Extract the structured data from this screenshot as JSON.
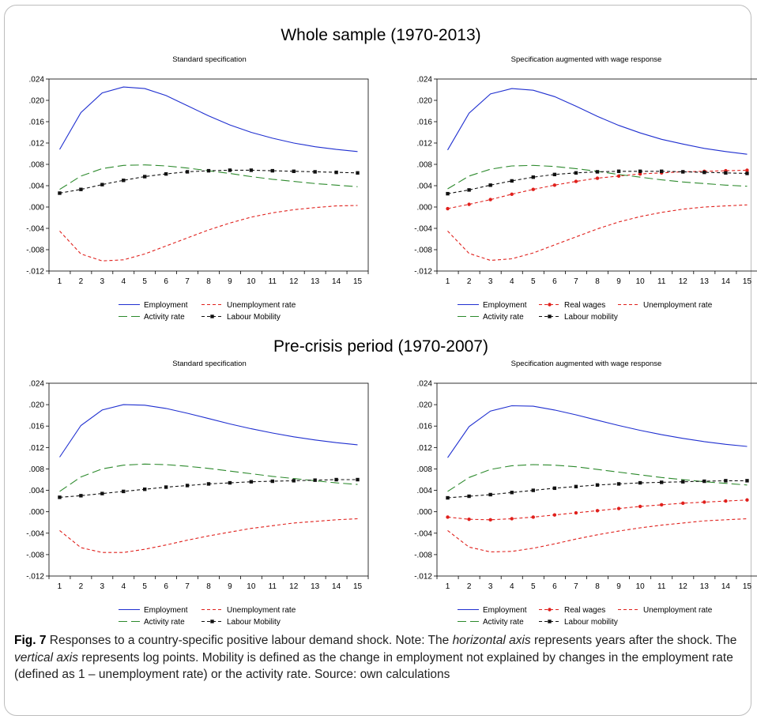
{
  "sections": [
    {
      "title": "Whole sample (1970-2013)"
    },
    {
      "title": "Pre-crisis period (1970-2007)"
    }
  ],
  "colors": {
    "employment": "#1f2fd0",
    "unemployment": "#e0201c",
    "activity": "#2d8a2d",
    "mobility": "#111111",
    "real_wages": "#e0201c"
  },
  "caption": {
    "fig_label": "Fig. 7",
    "part1": " Responses to a country-specific positive labour demand shock. Note: The ",
    "em1": "horizontal axis",
    "part2": " represents years after the shock. The ",
    "em2": "vertical axis",
    "part3": " represents log points. Mobility is defined as the change in employment not explained by changes in the employment rate (defined as 1 – unemployment rate) or the activity rate. Source: own calculations"
  },
  "chart_data": [
    {
      "type": "line",
      "title": "Standard specification",
      "section": "Whole sample (1970-2013)",
      "x": [
        1,
        2,
        3,
        4,
        5,
        6,
        7,
        8,
        9,
        10,
        11,
        12,
        13,
        14,
        15
      ],
      "ylim": [
        -0.012,
        0.024
      ],
      "yticks": [
        ".024",
        ".020",
        ".016",
        ".012",
        ".008",
        ".004",
        ".000",
        "-.004",
        "-.008",
        "-.012"
      ],
      "series": [
        {
          "name": "Employment",
          "key": "employment",
          "values": [
            0.0108,
            0.0177,
            0.0214,
            0.0225,
            0.0222,
            0.0209,
            0.019,
            0.0171,
            0.0154,
            0.014,
            0.0129,
            0.012,
            0.0113,
            0.0108,
            0.0104
          ]
        },
        {
          "name": "Unemployment rate",
          "key": "unemployment",
          "values": [
            -0.0045,
            -0.0088,
            -0.0101,
            -0.0099,
            -0.0088,
            -0.0073,
            -0.0058,
            -0.0043,
            -0.003,
            -0.0019,
            -0.0011,
            -0.0005,
            -0.0001,
            0.0002,
            0.0003
          ]
        },
        {
          "name": "Activity rate",
          "key": "activity",
          "values": [
            0.0033,
            0.0058,
            0.0072,
            0.0078,
            0.0079,
            0.0077,
            0.0073,
            0.0068,
            0.0063,
            0.0057,
            0.0052,
            0.0048,
            0.0044,
            0.0041,
            0.0038
          ]
        },
        {
          "name": "Labour Mobility",
          "key": "mobility",
          "values": [
            0.0026,
            0.0033,
            0.0042,
            0.005,
            0.0057,
            0.0062,
            0.0066,
            0.0068,
            0.0069,
            0.0069,
            0.0068,
            0.0067,
            0.0066,
            0.0065,
            0.0064
          ]
        }
      ],
      "legend": [
        [
          "Employment",
          "Unemployment rate"
        ],
        [
          "Activity rate",
          "Labour Mobility"
        ]
      ]
    },
    {
      "type": "line",
      "title": "Specification augmented with wage response",
      "section": "Whole sample (1970-2013)",
      "x": [
        1,
        2,
        3,
        4,
        5,
        6,
        7,
        8,
        9,
        10,
        11,
        12,
        13,
        14,
        15
      ],
      "ylim": [
        -0.012,
        0.024
      ],
      "yticks": [
        ".024",
        ".020",
        ".016",
        ".012",
        ".008",
        ".004",
        ".000",
        "-.004",
        "-.008",
        "-.012"
      ],
      "series": [
        {
          "name": "Employment",
          "key": "employment",
          "values": [
            0.0107,
            0.0176,
            0.0212,
            0.0222,
            0.0219,
            0.0207,
            0.0189,
            0.017,
            0.0153,
            0.0139,
            0.0127,
            0.0118,
            0.011,
            0.0104,
            0.0099
          ]
        },
        {
          "name": "Real wages",
          "key": "real_wages",
          "values": [
            -0.0003,
            0.0005,
            0.0014,
            0.0024,
            0.0033,
            0.0041,
            0.0048,
            0.0054,
            0.0058,
            0.0062,
            0.0064,
            0.0066,
            0.0067,
            0.0068,
            0.0069
          ]
        },
        {
          "name": "Unemployment rate",
          "key": "unemployment",
          "values": [
            -0.0045,
            -0.0087,
            -0.01,
            -0.0097,
            -0.0086,
            -0.0071,
            -0.0056,
            -0.0041,
            -0.0028,
            -0.0018,
            -0.001,
            -0.0004,
            0.0,
            0.0002,
            0.0004
          ]
        },
        {
          "name": "Activity rate",
          "key": "activity",
          "values": [
            0.0034,
            0.0058,
            0.0071,
            0.0077,
            0.0078,
            0.0076,
            0.0072,
            0.0067,
            0.0061,
            0.0056,
            0.0051,
            0.0047,
            0.0044,
            0.0041,
            0.0039
          ]
        },
        {
          "name": "Labour mobility",
          "key": "mobility",
          "values": [
            0.0025,
            0.0032,
            0.0041,
            0.0049,
            0.0056,
            0.0061,
            0.0064,
            0.0066,
            0.0067,
            0.0067,
            0.0067,
            0.0066,
            0.0065,
            0.0064,
            0.0063
          ]
        }
      ],
      "legend": [
        [
          "Employment",
          "Real wages",
          "Unemployment rate"
        ],
        [
          "Activity rate",
          "Labour mobility"
        ]
      ]
    },
    {
      "type": "line",
      "title": "Standard specification",
      "section": "Pre-crisis period (1970-2007)",
      "x": [
        1,
        2,
        3,
        4,
        5,
        6,
        7,
        8,
        9,
        10,
        11,
        12,
        13,
        14,
        15
      ],
      "ylim": [
        -0.012,
        0.024
      ],
      "yticks": [
        ".024",
        ".020",
        ".016",
        ".012",
        ".008",
        ".004",
        ".000",
        "-.004",
        "-.008",
        "-.012"
      ],
      "series": [
        {
          "name": "Employment",
          "key": "employment",
          "values": [
            0.0102,
            0.0161,
            0.019,
            0.02,
            0.0199,
            0.0193,
            0.0184,
            0.0174,
            0.0164,
            0.0155,
            0.0147,
            0.014,
            0.0134,
            0.0129,
            0.0125
          ]
        },
        {
          "name": "Unemployment rate",
          "key": "unemployment",
          "values": [
            -0.0035,
            -0.0067,
            -0.0076,
            -0.0076,
            -0.007,
            -0.0062,
            -0.0053,
            -0.0045,
            -0.0038,
            -0.0031,
            -0.0026,
            -0.0021,
            -0.0018,
            -0.0015,
            -0.0013
          ]
        },
        {
          "name": "Activity rate",
          "key": "activity",
          "values": [
            0.0038,
            0.0065,
            0.008,
            0.0087,
            0.0089,
            0.0088,
            0.0085,
            0.0081,
            0.0076,
            0.0071,
            0.0066,
            0.0062,
            0.0058,
            0.0054,
            0.0051
          ]
        },
        {
          "name": "Labour Mobility",
          "key": "mobility",
          "values": [
            0.0027,
            0.003,
            0.0034,
            0.0038,
            0.0042,
            0.0046,
            0.0049,
            0.0052,
            0.0054,
            0.0056,
            0.0057,
            0.0058,
            0.0059,
            0.006,
            0.006
          ]
        }
      ],
      "legend": [
        [
          "Employment",
          "Unemployment rate"
        ],
        [
          "Activity rate",
          "Labour Mobility"
        ]
      ]
    },
    {
      "type": "line",
      "title": "Specification augmented with wage response",
      "section": "Pre-crisis period (1970-2007)",
      "x": [
        1,
        2,
        3,
        4,
        5,
        6,
        7,
        8,
        9,
        10,
        11,
        12,
        13,
        14,
        15
      ],
      "ylim": [
        -0.012,
        0.024
      ],
      "yticks": [
        ".024",
        ".020",
        ".016",
        ".012",
        ".008",
        ".004",
        ".000",
        "-.004",
        "-.008",
        "-.012"
      ],
      "series": [
        {
          "name": "Employment",
          "key": "employment",
          "values": [
            0.0101,
            0.0159,
            0.0188,
            0.0198,
            0.0197,
            0.019,
            0.0181,
            0.0171,
            0.0161,
            0.0152,
            0.0144,
            0.0137,
            0.0131,
            0.0126,
            0.0122
          ]
        },
        {
          "name": "Real wages",
          "key": "real_wages",
          "values": [
            -0.001,
            -0.0014,
            -0.0015,
            -0.0013,
            -0.001,
            -0.0006,
            -0.0002,
            0.0002,
            0.0006,
            0.001,
            0.0013,
            0.0016,
            0.0018,
            0.002,
            0.0022
          ]
        },
        {
          "name": "Unemployment rate",
          "key": "unemployment",
          "values": [
            -0.0035,
            -0.0066,
            -0.0075,
            -0.0074,
            -0.0068,
            -0.006,
            -0.0051,
            -0.0043,
            -0.0036,
            -0.003,
            -0.0025,
            -0.0021,
            -0.0017,
            -0.0015,
            -0.0013
          ]
        },
        {
          "name": "Activity rate",
          "key": "activity",
          "values": [
            0.0038,
            0.0064,
            0.0079,
            0.0086,
            0.0088,
            0.0087,
            0.0084,
            0.0079,
            0.0074,
            0.0069,
            0.0064,
            0.006,
            0.0056,
            0.0053,
            0.005
          ]
        },
        {
          "name": "Labour mobility",
          "key": "mobility",
          "values": [
            0.0026,
            0.0029,
            0.0032,
            0.0036,
            0.004,
            0.0044,
            0.0047,
            0.005,
            0.0052,
            0.0054,
            0.0055,
            0.0056,
            0.0057,
            0.0058,
            0.0058
          ]
        }
      ],
      "legend": [
        [
          "Employment",
          "Real wages",
          "Unemployment rate"
        ],
        [
          "Activity rate",
          "Labour mobility"
        ]
      ]
    }
  ]
}
